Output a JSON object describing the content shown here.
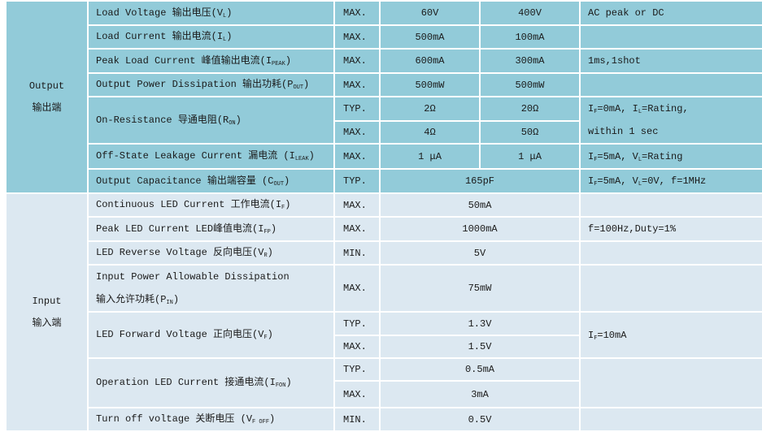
{
  "colors": {
    "output_bg": "#92cbd9",
    "input_bg": "#dce8f1",
    "border": "#ffffff"
  },
  "sections": [
    {
      "label_en": "Output",
      "label_zh": "输出端",
      "bg": "#92cbd9",
      "rows": [
        {
          "param": [
            [
              "Load Voltage 输出电压(V",
              {
                "sub": "L"
              },
              ")"
            ]
          ],
          "entries": [
            {
              "cond": "MAX.",
              "values": [
                "60V",
                "400V"
              ]
            }
          ],
          "note": [
            [
              "AC peak or DC"
            ]
          ]
        },
        {
          "param": [
            [
              "Load Current 输出电流(I",
              {
                "sub": "L"
              },
              ")"
            ]
          ],
          "entries": [
            {
              "cond": "MAX.",
              "values": [
                "500mA",
                "100mA"
              ]
            }
          ],
          "note": []
        },
        {
          "param": [
            [
              "Peak Load Current 峰值输出电流(I",
              {
                "sub": "PEAK"
              },
              ")"
            ]
          ],
          "entries": [
            {
              "cond": "MAX.",
              "values": [
                "600mA",
                "300mA"
              ]
            }
          ],
          "note": [
            [
              "1ms,1shot"
            ]
          ]
        },
        {
          "param": [
            [
              "Output Power Dissipation 输出功耗(P",
              {
                "sub": "OUT"
              },
              ")"
            ]
          ],
          "entries": [
            {
              "cond": "MAX.",
              "values": [
                "500mW",
                "500mW"
              ]
            }
          ],
          "note": []
        },
        {
          "param": [
            [
              "On-Resistance 导通电阻(R",
              {
                "sub": "ON"
              },
              ")"
            ]
          ],
          "entries": [
            {
              "cond": "TYP.",
              "values": [
                "2Ω",
                "20Ω"
              ]
            },
            {
              "cond": "MAX.",
              "values": [
                "4Ω",
                "50Ω"
              ]
            }
          ],
          "note": [
            [
              "I",
              {
                "sub": "F"
              },
              "=0mA, I",
              {
                "sub": "L"
              },
              "=Rating,"
            ],
            [
              "within 1 sec"
            ]
          ]
        },
        {
          "param": [
            [
              "Off-State Leakage Current 漏电流 (I",
              {
                "sub": "LEAK"
              },
              ")"
            ]
          ],
          "entries": [
            {
              "cond": "MAX.",
              "values": [
                "1 μA",
                "1 μA"
              ]
            }
          ],
          "note": [
            [
              "I",
              {
                "sub": "F"
              },
              "=5mA, V",
              {
                "sub": "L"
              },
              "=Rating"
            ]
          ]
        },
        {
          "param": [
            [
              "Output Capacitance 输出端容量 (C",
              {
                "sub": "OUT"
              },
              ")"
            ]
          ],
          "entries": [
            {
              "cond": "TYP.",
              "values": [
                "165pF"
              ]
            }
          ],
          "note": [
            [
              "I",
              {
                "sub": "F"
              },
              "=5mA, V",
              {
                "sub": "L"
              },
              "=0V, f=1MHz"
            ]
          ]
        }
      ]
    },
    {
      "label_en": "Input",
      "label_zh": "输入端",
      "bg": "#dce8f1",
      "rows": [
        {
          "param": [
            [
              "Continuous LED Current 工作电流(I",
              {
                "sub": "F"
              },
              ")"
            ]
          ],
          "entries": [
            {
              "cond": "MAX.",
              "values": [
                "50mA"
              ]
            }
          ],
          "note": []
        },
        {
          "param": [
            [
              "Peak LED Current LED峰值电流(I",
              {
                "sub": "FP"
              },
              ")"
            ]
          ],
          "entries": [
            {
              "cond": "MAX.",
              "values": [
                "1000mA"
              ]
            }
          ],
          "note": [
            [
              "f=100Hz,Duty=1%"
            ]
          ]
        },
        {
          "param": [
            [
              "LED Reverse Voltage 反向电压(V",
              {
                "sub": "R"
              },
              ")"
            ]
          ],
          "entries": [
            {
              "cond": "MIN.",
              "values": [
                "5V"
              ]
            }
          ],
          "note": []
        },
        {
          "param": [
            [
              "Input Power Allowable Dissipation"
            ],
            [
              "输入允许功耗(P",
              {
                "sub": "IN"
              },
              ")"
            ]
          ],
          "entries": [
            {
              "cond": "MAX.",
              "values": [
                "75mW"
              ]
            }
          ],
          "note": []
        },
        {
          "param": [
            [
              "LED Forward Voltage 正向电压(V",
              {
                "sub": "F"
              },
              ")"
            ]
          ],
          "entries": [
            {
              "cond": "TYP.",
              "values": [
                "1.3V"
              ]
            },
            {
              "cond": "MAX.",
              "values": [
                "1.5V"
              ]
            }
          ],
          "note": [
            [
              "I",
              {
                "sub": "F"
              },
              "=10mA"
            ]
          ]
        },
        {
          "param": [
            [
              "Operation LED Current 接通电流(I",
              {
                "sub": "FON"
              },
              ")"
            ]
          ],
          "entries": [
            {
              "cond": "TYP.",
              "values": [
                "0.5mA"
              ]
            },
            {
              "cond": "MAX.",
              "values": [
                "3mA"
              ]
            }
          ],
          "note": []
        },
        {
          "param": [
            [
              "Turn off voltage 关断电压 (V",
              {
                "sub": "F OFF"
              },
              ")"
            ]
          ],
          "entries": [
            {
              "cond": "MIN.",
              "values": [
                "0.5V"
              ]
            }
          ],
          "note": []
        }
      ]
    }
  ]
}
